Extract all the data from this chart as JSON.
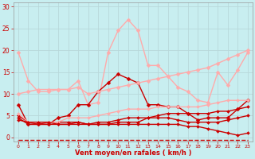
{
  "title": "",
  "xlabel": "Vent moyen/en rafales ( km/h )",
  "ylabel": "",
  "background_color": "#c8eef0",
  "grid_color": "#b8d8da",
  "text_color": "#cc0000",
  "xlim": [
    -0.5,
    23.5
  ],
  "ylim": [
    -1,
    31
  ],
  "yticks": [
    0,
    5,
    10,
    15,
    20,
    25,
    30
  ],
  "xticks": [
    0,
    1,
    2,
    3,
    4,
    5,
    6,
    7,
    8,
    9,
    10,
    11,
    12,
    13,
    14,
    15,
    16,
    17,
    18,
    19,
    20,
    21,
    22,
    23
  ],
  "series": [
    {
      "y": [
        19.5,
        13.0,
        10.5,
        10.5,
        11.0,
        11.0,
        13.0,
        7.5,
        8.0,
        19.5,
        24.5,
        27.0,
        24.5,
        16.5,
        16.5,
        14.0,
        11.5,
        10.5,
        8.5,
        8.0,
        15.0,
        12.0,
        15.5,
        19.5
      ],
      "color": "#ffaaaa",
      "lw": 1.0,
      "marker": "D",
      "ms": 2.5
    },
    {
      "y": [
        7.5,
        3.0,
        3.0,
        3.0,
        4.5,
        5.0,
        7.5,
        7.5,
        10.5,
        12.5,
        14.5,
        13.5,
        12.5,
        7.5,
        7.5,
        7.0,
        7.0,
        5.5,
        4.0,
        4.5,
        4.5,
        4.5,
        6.5,
        8.5
      ],
      "color": "#cc0000",
      "lw": 1.0,
      "marker": "D",
      "ms": 2.5
    },
    {
      "y": [
        10.0,
        10.5,
        11.0,
        11.0,
        11.0,
        11.0,
        11.5,
        10.0,
        10.5,
        11.0,
        11.5,
        12.0,
        12.5,
        13.0,
        13.5,
        14.0,
        14.5,
        15.0,
        15.5,
        16.0,
        17.0,
        18.0,
        19.0,
        20.0
      ],
      "color": "#ffaaaa",
      "lw": 1.0,
      "marker": "D",
      "ms": 2.5
    },
    {
      "y": [
        5.0,
        3.5,
        3.0,
        3.5,
        3.5,
        3.5,
        3.5,
        3.0,
        3.0,
        3.0,
        3.5,
        3.5,
        3.5,
        4.5,
        5.0,
        5.5,
        5.5,
        5.5,
        5.5,
        5.5,
        6.0,
        6.0,
        6.5,
        7.0
      ],
      "color": "#cc0000",
      "lw": 1.0,
      "marker": "D",
      "ms": 2.0
    },
    {
      "y": [
        5.5,
        3.5,
        3.5,
        3.5,
        3.5,
        4.5,
        4.5,
        4.5,
        5.0,
        5.5,
        6.0,
        6.5,
        6.5,
        6.5,
        7.0,
        7.0,
        7.0,
        7.0,
        7.0,
        7.5,
        8.0,
        8.5,
        8.5,
        8.5
      ],
      "color": "#ffaaaa",
      "lw": 1.0,
      "marker": "D",
      "ms": 2.0
    },
    {
      "y": [
        4.5,
        3.0,
        3.0,
        3.0,
        3.0,
        3.0,
        3.5,
        3.0,
        3.5,
        3.5,
        4.0,
        4.5,
        4.5,
        4.5,
        4.5,
        4.5,
        4.0,
        3.5,
        3.5,
        3.5,
        3.5,
        4.0,
        4.5,
        5.0
      ],
      "color": "#cc0000",
      "lw": 1.0,
      "marker": "D",
      "ms": 2.0
    },
    {
      "y": [
        4.0,
        3.5,
        3.5,
        3.5,
        3.0,
        3.0,
        3.0,
        3.0,
        3.0,
        3.0,
        3.0,
        3.0,
        3.0,
        3.0,
        3.0,
        3.0,
        3.0,
        2.5,
        2.5,
        2.0,
        1.5,
        1.0,
        0.5,
        1.0
      ],
      "color": "#cc0000",
      "lw": 1.0,
      "marker": "D",
      "ms": 2.0
    },
    {
      "y": [
        -0.5,
        -0.5,
        -0.5,
        -0.5,
        -0.5,
        -0.5,
        -0.5,
        -0.5,
        -0.5,
        -0.5,
        -0.5,
        -0.5,
        -0.5,
        -0.5,
        -0.5,
        -0.5,
        -0.5,
        -0.5,
        -0.5,
        -0.5,
        -0.5,
        -0.5,
        -0.5,
        -0.5
      ],
      "color": "#cc0000",
      "lw": 1.0,
      "marker": 3,
      "ms": 4,
      "dashed": true
    }
  ]
}
